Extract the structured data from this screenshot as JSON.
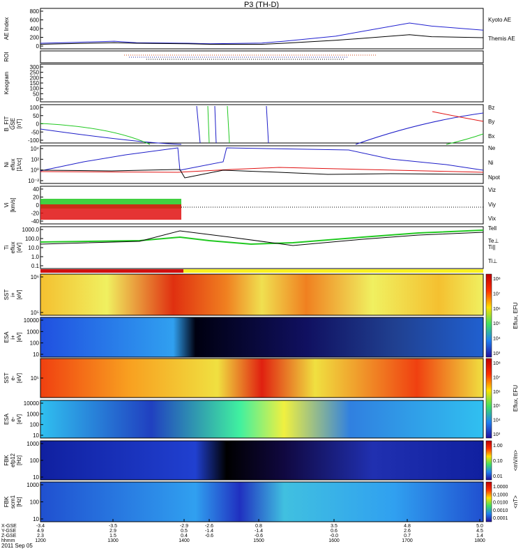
{
  "title": "P3 (TH-D)",
  "date": "2011 Sep 05",
  "colors": {
    "blue": "#1c1cc8",
    "red": "#e01010",
    "green": "#20c820",
    "black": "#000000",
    "kyoto": "#2020d0"
  },
  "panels": [
    {
      "id": "ae",
      "ylabel": [
        "AE Index"
      ],
      "ticks": [
        "800",
        "600",
        "400",
        "200",
        "0"
      ]
    },
    {
      "id": "roi",
      "ylabel": [
        "ROI"
      ],
      "ticks": []
    },
    {
      "id": "keogram",
      "ylabel": [
        "Keogram"
      ],
      "ticks": [
        "300",
        "250",
        "200",
        "150",
        "100",
        "50",
        "0"
      ]
    },
    {
      "id": "bfit",
      "ylabel": [
        "B_FIT",
        "GSE",
        "[nT]"
      ],
      "ticks": [
        "100",
        "50",
        "0",
        "-50",
        "-100"
      ]
    },
    {
      "id": "ni",
      "ylabel": [
        "Ni",
        "eflux",
        "[1/cc]"
      ],
      "ticks": [
        "10⁴",
        "10²",
        "10⁰",
        "10⁻²"
      ]
    },
    {
      "id": "vi",
      "ylabel": [
        "Vi",
        "[km/s]"
      ],
      "ticks": [
        "40",
        "20",
        "0",
        "-20",
        "-40"
      ]
    },
    {
      "id": "ti",
      "ylabel": [
        "Ti",
        "eflux",
        "[eV]"
      ],
      "ticks": [
        "1000.0",
        "100.0",
        "10.0",
        "1.0",
        "0.1"
      ]
    },
    {
      "id": "sst_i",
      "ylabel": [
        "SST",
        "i+",
        "[eV]"
      ],
      "ticks": [
        "10⁶",
        "10⁵"
      ]
    },
    {
      "id": "esa_i",
      "ylabel": [
        "ESA",
        "i+",
        "[eV]"
      ],
      "ticks": [
        "10000",
        "1000",
        "100",
        "10"
      ]
    },
    {
      "id": "sst_e",
      "ylabel": [
        "SST",
        "e-",
        "[eV]"
      ],
      "ticks": [
        "10⁵"
      ]
    },
    {
      "id": "esa_e",
      "ylabel": [
        "ESA",
        "e-",
        "[eV]"
      ],
      "ticks": [
        "10000",
        "1000",
        "100",
        "10"
      ]
    },
    {
      "id": "fbk_e",
      "ylabel": [
        "FBK",
        "efp12",
        "[Hz]"
      ],
      "ticks": [
        "1000",
        "100",
        "10"
      ]
    },
    {
      "id": "fbk_b",
      "ylabel": [
        "FBK",
        "scm1",
        "[Hz]"
      ],
      "ticks": [
        "1000",
        "100",
        "10"
      ]
    }
  ],
  "legends": {
    "ae": [
      "Kyoto AE",
      "Themis AE"
    ],
    "bfit": [
      "Bz",
      "By",
      "Bx"
    ],
    "ni": [
      "Ne",
      "Ni",
      "Npot"
    ],
    "vi": [
      "Viz",
      "Viy",
      "Vix"
    ],
    "ti": [
      "Tell",
      "Te⊥",
      "Ti||",
      "Ti⊥"
    ]
  },
  "colorbars": [
    {
      "label": "Eflux, EFU",
      "ticks": [
        "10⁸",
        "10⁷",
        "10⁶",
        "10⁵",
        "10⁴",
        "10³"
      ]
    },
    {
      "label": "Eflux, EFU",
      "ticks": [
        "10⁸",
        "10⁷",
        "10⁶",
        "10⁵",
        "10⁴",
        "10³"
      ]
    },
    {
      "label": "Eflux, EFU",
      "ticks": [
        "10⁸",
        "10⁷",
        "10⁶",
        "10⁵",
        "10⁴",
        "10³"
      ]
    },
    {
      "label": "Eflux, EFU",
      "ticks": [
        "10⁸",
        "10⁷",
        "10⁶",
        "10⁵",
        "10⁴",
        "10³"
      ]
    },
    {
      "label": "<mV/m>",
      "ticks": [
        "1.00",
        "0.10",
        "0.01"
      ]
    },
    {
      "label": "<nT>",
      "ticks": [
        "1.0000",
        "0.1000",
        "0.0100",
        "0.0010",
        "0.0001"
      ]
    }
  ],
  "xaxis": {
    "row_labels": [
      "X-GSE",
      "Y-GSE",
      "Z-GSE",
      "hhmm"
    ],
    "columns": [
      {
        "x": "-3.4",
        "y": "4.9",
        "z": "2.3",
        "t": "1200"
      },
      {
        "x": "-3.5",
        "y": "2.9",
        "z": "1.5",
        "t": "1300"
      },
      {
        "x": "-2.9",
        "y": "0.5",
        "z": "0.4",
        "t": "1400"
      },
      {
        "x": "-2.6",
        "y": "-1.4",
        "z": "-0.6",
        "t": ""
      },
      {
        "x": "0.8",
        "y": "-1.4",
        "z": "-0.6",
        "t": "1500"
      },
      {
        "x": "3.5",
        "y": "0.6",
        "z": "-0.0",
        "t": "1600"
      },
      {
        "x": "4.8",
        "y": "2.6",
        "z": "0.7",
        "t": "1700"
      },
      {
        "x": "5.0",
        "y": "4.5",
        "z": "1.4",
        "t": "1800"
      }
    ]
  },
  "chart_data": {
    "type": "line",
    "title": "P3 (TH-D)",
    "time_ticks": [
      "1200",
      "1300",
      "1400",
      "1500",
      "1600",
      "1700",
      "1800"
    ],
    "x": [
      1200,
      1230,
      1300,
      1330,
      1400,
      1430,
      1500,
      1530,
      1600,
      1630,
      1700,
      1730,
      1800
    ],
    "series": [
      {
        "name": "Kyoto AE",
        "values": [
          110,
          120,
          150,
          120,
          110,
          100,
          115,
          150,
          250,
          330,
          510,
          450,
          370
        ]
      },
      {
        "name": "Themis AE",
        "values": [
          90,
          100,
          120,
          110,
          100,
          90,
          90,
          110,
          170,
          200,
          280,
          240,
          220
        ]
      }
    ],
    "ylim": [
      0,
      800
    ]
  }
}
